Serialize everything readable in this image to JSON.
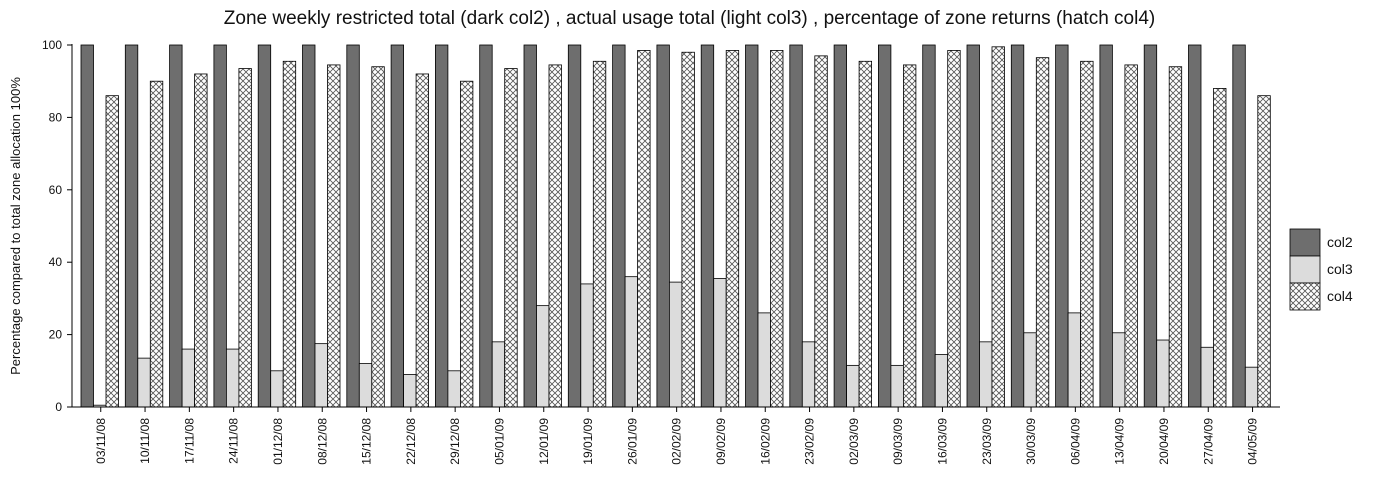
{
  "chart_data": {
    "type": "bar",
    "title": "Zone weekly restricted total (dark col2) , actual usage total (light col3) , percentage of zone returns (hatch col4)",
    "xlabel": "",
    "ylabel": "Percentage compared to total zone allocation 100%",
    "ylim": [
      0,
      100
    ],
    "yticks": [
      "0",
      "20",
      "40",
      "60",
      "80",
      "100"
    ],
    "grid": false,
    "legend_position": "right",
    "categories": [
      "03/11/08",
      "10/11/08",
      "17/11/08",
      "24/11/08",
      "01/12/08",
      "08/12/08",
      "15/12/08",
      "22/12/08",
      "29/12/08",
      "05/01/09",
      "12/01/09",
      "19/01/09",
      "26/01/09",
      "02/02/09",
      "09/02/09",
      "16/02/09",
      "23/02/09",
      "02/03/09",
      "09/03/09",
      "16/03/09",
      "23/03/09",
      "30/03/09",
      "06/04/09",
      "13/04/09",
      "20/04/09",
      "27/04/09",
      "04/05/09"
    ],
    "series": [
      {
        "name": "col2",
        "color": "#6e6e6e",
        "pattern": "solid-dark",
        "values": [
          100,
          100,
          100,
          100,
          100,
          100,
          100,
          100,
          100,
          100,
          100,
          100,
          100,
          100,
          100,
          100,
          100,
          100,
          100,
          100,
          100,
          100,
          100,
          100,
          100,
          100,
          100
        ]
      },
      {
        "name": "col3",
        "color": "#dcdcdc",
        "pattern": "solid-light",
        "values": [
          0.5,
          13.5,
          16,
          16,
          10,
          17.5,
          12,
          9,
          10,
          18,
          28,
          34,
          36,
          34.5,
          35.5,
          26,
          18,
          11.5,
          11.5,
          14.5,
          18,
          20.5,
          26,
          20.5,
          18.5,
          16.5,
          11
        ]
      },
      {
        "name": "col4",
        "color": "#ffffff",
        "pattern": "hatch",
        "values": [
          86,
          90,
          92,
          93.5,
          95.5,
          94.5,
          94,
          92,
          90,
          93.5,
          94.5,
          95.5,
          98.5,
          98,
          98.5,
          98.5,
          97,
          95.5,
          94.5,
          98.5,
          99.5,
          96.5,
          95.5,
          94.5,
          94,
          88,
          86
        ]
      }
    ]
  }
}
